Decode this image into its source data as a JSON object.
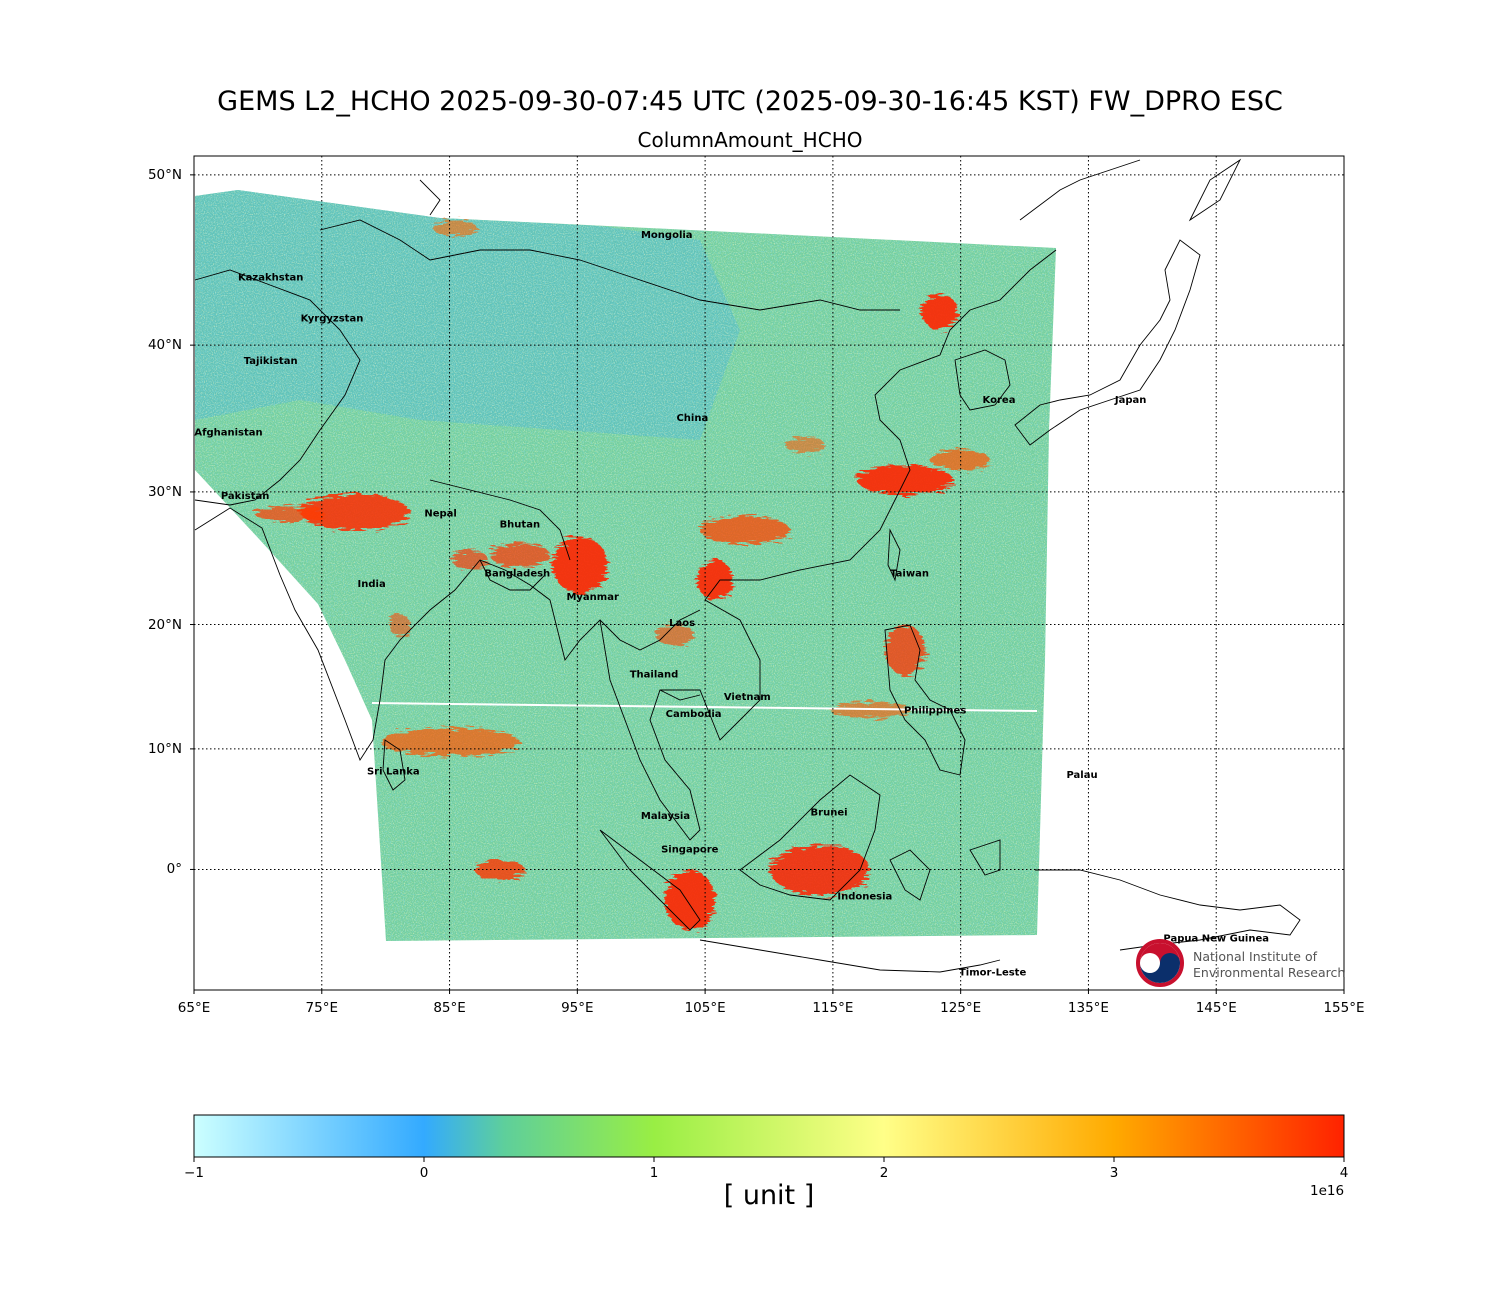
{
  "title": "GEMS L2_HCHO 2025-09-30-07:45 UTC (2025-09-30-16:45 KST)  FW_DPRO ESC",
  "subtitle": "ColumnAmount_HCHO",
  "map": {
    "lon_range": [
      65,
      155
    ],
    "lat_range": [
      -10,
      51
    ],
    "lat_ticks": [
      {
        "value": 50,
        "label": "50°N"
      },
      {
        "value": 40,
        "label": "40°N"
      },
      {
        "value": 30,
        "label": "30°N"
      },
      {
        "value": 20,
        "label": "20°N"
      },
      {
        "value": 10,
        "label": "10°N"
      },
      {
        "value": 0,
        "label": "0°"
      }
    ],
    "lon_ticks": [
      {
        "value": 65,
        "label": "65°E"
      },
      {
        "value": 75,
        "label": "75°E"
      },
      {
        "value": 85,
        "label": "85°E"
      },
      {
        "value": 95,
        "label": "95°E"
      },
      {
        "value": 105,
        "label": "105°E"
      },
      {
        "value": 115,
        "label": "115°E"
      },
      {
        "value": 125,
        "label": "125°E"
      },
      {
        "value": 135,
        "label": "135°E"
      },
      {
        "value": 145,
        "label": "145°E"
      },
      {
        "value": 155,
        "label": "155°E"
      }
    ],
    "grid": "dotted",
    "countries": [
      {
        "name": "Mongolia",
        "lon": 102,
        "lat": 46.5
      },
      {
        "name": "Kazakhstan",
        "lon": 71,
        "lat": 44
      },
      {
        "name": "Kyrgyzstan",
        "lon": 75.8,
        "lat": 41.5
      },
      {
        "name": "Tajikistan",
        "lon": 71,
        "lat": 38.8
      },
      {
        "name": "Afghanistan",
        "lon": 67.7,
        "lat": 34
      },
      {
        "name": "China",
        "lon": 104,
        "lat": 35
      },
      {
        "name": "Korea",
        "lon": 128,
        "lat": 36.2
      },
      {
        "name": "Japan",
        "lon": 138.3,
        "lat": 36.2
      },
      {
        "name": "Pakistan",
        "lon": 69,
        "lat": 29.5
      },
      {
        "name": "Nepal",
        "lon": 84.3,
        "lat": 28.2
      },
      {
        "name": "Bhutan",
        "lon": 90.5,
        "lat": 27.4
      },
      {
        "name": "India",
        "lon": 78.9,
        "lat": 22.9
      },
      {
        "name": "Bangladesh",
        "lon": 90.3,
        "lat": 23.7
      },
      {
        "name": "Myanmar",
        "lon": 96.2,
        "lat": 21.9
      },
      {
        "name": "Taiwan",
        "lon": 121,
        "lat": 23.7
      },
      {
        "name": "Laos",
        "lon": 103.2,
        "lat": 19.9
      },
      {
        "name": "Thailand",
        "lon": 101,
        "lat": 15.8
      },
      {
        "name": "Vietnam",
        "lon": 108.3,
        "lat": 14
      },
      {
        "name": "Cambodia",
        "lon": 104.1,
        "lat": 12.6
      },
      {
        "name": "Philippines",
        "lon": 123,
        "lat": 12.9
      },
      {
        "name": "Sri Lanka",
        "lon": 80.6,
        "lat": 7.9
      },
      {
        "name": "Palau",
        "lon": 134.5,
        "lat": 7.6
      },
      {
        "name": "Brunei",
        "lon": 114.7,
        "lat": 4.5
      },
      {
        "name": "Malaysia",
        "lon": 101.9,
        "lat": 4.2
      },
      {
        "name": "Singapore",
        "lon": 103.8,
        "lat": 1.4
      },
      {
        "name": "Indonesia",
        "lon": 117.5,
        "lat": -2.5
      },
      {
        "name": "Papua New Guinea",
        "lon": 145,
        "lat": -6
      },
      {
        "name": "Timor-Leste",
        "lon": 127.5,
        "lat": -8.8
      }
    ]
  },
  "colorbar": {
    "min": -1,
    "max": 4,
    "ticks": [
      "−1",
      "0",
      "1",
      "2",
      "3",
      "4"
    ],
    "unit_label": "[ unit ]",
    "exponent_label": "1e16",
    "colors": [
      "#ccffff",
      "#33aaff",
      "#5ecf9b",
      "#99ee44",
      "#ffff88",
      "#ffaa00",
      "#ff2200"
    ]
  },
  "logo": {
    "line1": "National Institute of",
    "line2": "Environmental Research"
  }
}
